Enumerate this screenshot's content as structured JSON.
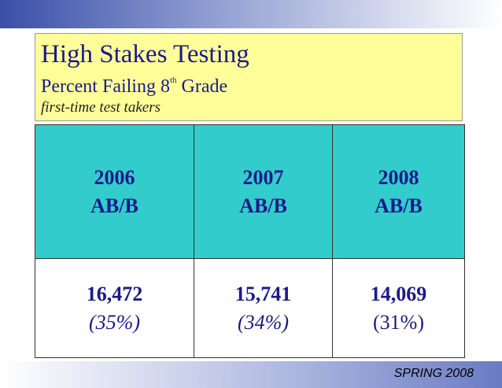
{
  "header": {
    "title": "High Stakes Testing",
    "subtitle": {
      "text": "Percent Failing 8",
      "superscript": "th",
      "rest": "Grade"
    },
    "note": "first-time test takers"
  },
  "table": {
    "columns": [
      {
        "year": "2006",
        "label": "AB/B"
      },
      {
        "year": "2007",
        "label": "AB/B"
      },
      {
        "year": "2008",
        "label": "AB/B"
      }
    ],
    "rows": [
      [
        {
          "count": "16,472",
          "percent": "(35%)",
          "italic": true
        },
        {
          "count": "15,741",
          "percent": "(34%)",
          "italic": true
        },
        {
          "count": "14,069",
          "percent": "(31%)",
          "italic": false
        }
      ]
    ]
  },
  "footer": "SPRING 2008"
}
